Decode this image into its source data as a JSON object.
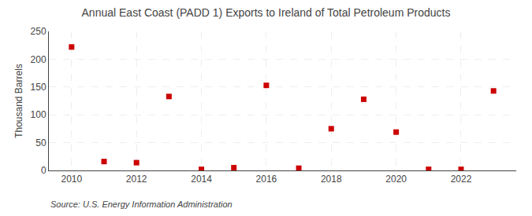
{
  "chart_data": {
    "type": "scatter",
    "title": "Annual East Coast (PADD 1) Exports to Ireland of Total Petroleum Products",
    "ylabel": "Thousand Barrels",
    "source": "Source: U.S. Energy Information Administration",
    "x": [
      2010,
      2011,
      2012,
      2013,
      2014,
      2015,
      2016,
      2017,
      2018,
      2019,
      2020,
      2021,
      2022,
      2023
    ],
    "values": [
      222,
      16,
      14,
      133,
      2,
      5,
      153,
      4,
      75,
      128,
      69,
      2,
      2,
      143
    ],
    "color": "#cc0000",
    "marker": "square",
    "grid": true,
    "xlim": [
      2009.3,
      2023.7
    ],
    "xticks": [
      2010,
      2012,
      2014,
      2016,
      2018,
      2020,
      2022
    ],
    "ylim": [
      0,
      250
    ],
    "yticks": [
      0,
      50,
      100,
      150,
      200,
      250
    ]
  }
}
